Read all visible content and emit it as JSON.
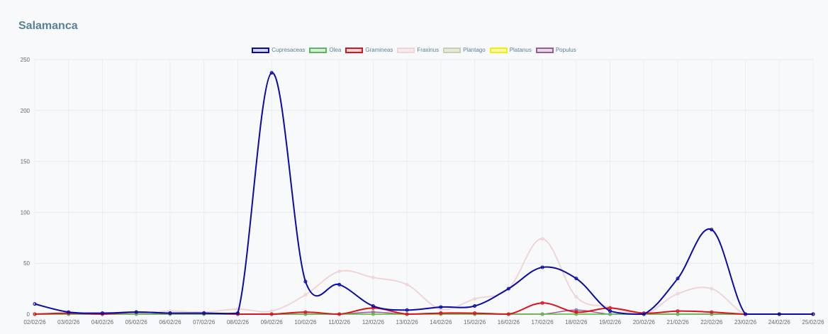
{
  "title": "Salamanca",
  "chart_data": {
    "type": "line",
    "title": "Salamanca",
    "xlabel": "",
    "ylabel": "",
    "ylim": [
      0,
      250
    ],
    "yticks": [
      0,
      50,
      100,
      150,
      200,
      250
    ],
    "grid": true,
    "legend_position": "top-center",
    "categories": [
      "02/02/26",
      "03/02/26",
      "04/02/26",
      "05/02/26",
      "06/02/26",
      "07/02/26",
      "08/02/26",
      "09/02/26",
      "10/02/26",
      "11/02/26",
      "12/02/26",
      "13/02/26",
      "14/02/26",
      "15/02/26",
      "16/02/26",
      "17/02/26",
      "18/02/26",
      "19/02/26",
      "20/02/26",
      "21/02/26",
      "22/02/26",
      "23/02/26",
      "24/02/26",
      "25/02/26"
    ],
    "series": [
      {
        "name": "Cupresaceas",
        "color": "#0a0aa8",
        "fill": "rgba(10,10,168,0.15)",
        "width": 2,
        "values": [
          10,
          2,
          1,
          2,
          1,
          1,
          1,
          237,
          32,
          29,
          8,
          4,
          7,
          8,
          25,
          46,
          35,
          3,
          0,
          35,
          83,
          0,
          0,
          0
        ]
      },
      {
        "name": "Olea",
        "color": "#5cb85c",
        "fill": "rgba(92,184,92,0.2)",
        "width": 1.5,
        "values": [
          0,
          0,
          0,
          0,
          0,
          0,
          0,
          0,
          0,
          0,
          0,
          0,
          0,
          0,
          0,
          0,
          0,
          0,
          0,
          0,
          0,
          0,
          0,
          0
        ]
      },
      {
        "name": "Gramineas",
        "color": "#d9141b",
        "fill": "rgba(217,20,27,0.15)",
        "width": 2,
        "values": [
          0,
          1,
          0,
          2,
          1,
          1,
          0,
          0,
          2,
          0,
          6,
          0,
          1,
          1,
          0,
          11,
          2,
          6,
          1,
          3,
          2,
          0,
          0,
          0
        ]
      },
      {
        "name": "Fraxinus",
        "color": "#efd5d8",
        "fill": "rgba(239,213,216,0.4)",
        "width": 2,
        "values": [
          0,
          0,
          1,
          1,
          3,
          2,
          5,
          3,
          19,
          42,
          36,
          29,
          5,
          15,
          25,
          74,
          17,
          7,
          0,
          20,
          25,
          0,
          0,
          0
        ]
      },
      {
        "name": "Plantago",
        "color": "#c9d0b0",
        "fill": "rgba(201,208,176,0.4)",
        "width": 1.5,
        "values": [
          0,
          0,
          0,
          0,
          0,
          0,
          0,
          0,
          0,
          0,
          0,
          0,
          0,
          0,
          0,
          0,
          0,
          0,
          0,
          0,
          0,
          0,
          0,
          0
        ]
      },
      {
        "name": "Platanus",
        "color": "#f2f200",
        "fill": "rgba(242,242,0,0.25)",
        "width": 1.5,
        "values": [
          0,
          0,
          0,
          0,
          0,
          0,
          0,
          0,
          0,
          0,
          0,
          0,
          0,
          0,
          0,
          0,
          0,
          0,
          0,
          0,
          0,
          0,
          0,
          0
        ]
      },
      {
        "name": "Populus",
        "color": "#9a5c94",
        "fill": "rgba(154,92,148,0.2)",
        "width": 1.5,
        "values": [
          0,
          0,
          0,
          0,
          0,
          0,
          0,
          0,
          0,
          0,
          2,
          0,
          1,
          0,
          0,
          0,
          4,
          0,
          0,
          0,
          0,
          0,
          0,
          0
        ]
      }
    ]
  }
}
